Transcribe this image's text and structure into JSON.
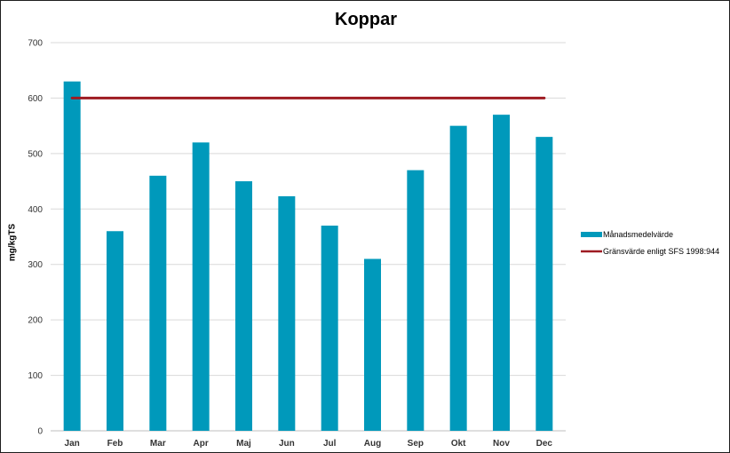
{
  "chart_data": {
    "type": "bar",
    "title": "Koppar",
    "xlabel": "",
    "ylabel": "mg/kgTS",
    "ylim": [
      0,
      700
    ],
    "yticks": [
      0,
      100,
      200,
      300,
      400,
      500,
      600,
      700
    ],
    "categories": [
      "Jan",
      "Feb",
      "Mar",
      "Apr",
      "Maj",
      "Jun",
      "Jul",
      "Aug",
      "Sep",
      "Okt",
      "Nov",
      "Dec"
    ],
    "series": [
      {
        "name": "Månadsmedelvärde",
        "type": "bar",
        "color": "#0099bb",
        "values": [
          630,
          360,
          460,
          520,
          450,
          423,
          370,
          310,
          470,
          550,
          570,
          530
        ]
      },
      {
        "name": "Gränsvärde enligt SFS 1998:944",
        "type": "line",
        "color": "#9e1b22",
        "values": [
          600,
          600,
          600,
          600,
          600,
          600,
          600,
          600,
          600,
          600,
          600,
          600
        ]
      }
    ],
    "grid": true,
    "legend": "right"
  }
}
